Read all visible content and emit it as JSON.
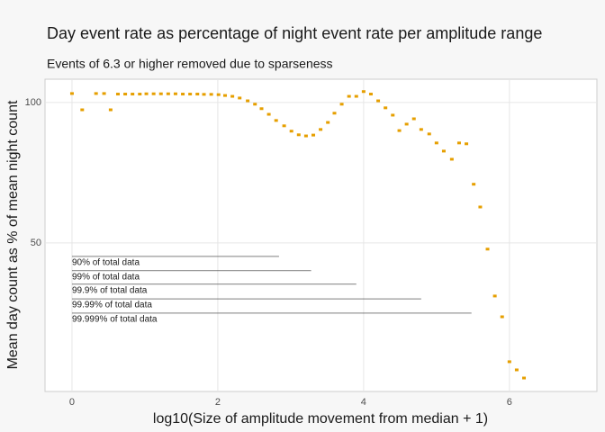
{
  "chart_data": {
    "type": "scatter",
    "title": "Day event rate as percentage of night event rate per amplitude range",
    "subtitle": "Events of 6.3 or higher removed due to sparseness",
    "x_label": "log10(Size of amplitude movement from median + 1)",
    "y_label": "Mean day count as % of mean night count",
    "color": "#e69f00",
    "grid": true,
    "xlim": [
      -0.37,
      7.2
    ],
    "ylim": [
      -2.9,
      108.3
    ],
    "xticks": [
      0,
      2,
      4,
      6
    ],
    "yticks": [
      50,
      100
    ],
    "x": [
      0.0,
      0.14,
      0.33,
      0.44,
      0.53,
      0.63,
      0.73,
      0.83,
      0.93,
      1.02,
      1.12,
      1.22,
      1.32,
      1.42,
      1.52,
      1.62,
      1.72,
      1.81,
      1.91,
      2.01,
      2.1,
      2.2,
      2.3,
      2.41,
      2.51,
      2.6,
      2.7,
      2.8,
      2.91,
      3.01,
      3.11,
      3.21,
      3.31,
      3.41,
      3.51,
      3.6,
      3.7,
      3.8,
      3.9,
      4.0,
      4.1,
      4.2,
      4.3,
      4.4,
      4.49,
      4.59,
      4.69,
      4.79,
      4.9,
      5.0,
      5.1,
      5.21,
      5.31,
      5.41,
      5.51,
      5.6,
      5.7,
      5.8,
      5.9,
      6.0,
      6.1,
      6.2
    ],
    "values": [
      103.2,
      97.4,
      103.2,
      103.2,
      97.4,
      103,
      103,
      103,
      103,
      103.1,
      103.1,
      103.1,
      103.1,
      103.1,
      103,
      103,
      103,
      102.9,
      102.9,
      102.8,
      102.5,
      102.2,
      101.6,
      100.6,
      99.4,
      97.8,
      95.8,
      93.6,
      91.7,
      89.8,
      88.5,
      88.1,
      88.4,
      90.4,
      92.9,
      96.2,
      99.4,
      102.2,
      102.2,
      103.9,
      103.0,
      100.6,
      98.1,
      95.5,
      90.0,
      92.3,
      94.2,
      90.4,
      88.8,
      85.6,
      82.7,
      79.8,
      85.6,
      85.3,
      70.9,
      62.8,
      47.8,
      31.1,
      23.7,
      7.7,
      4.8,
      1.9
    ],
    "annotations": [
      {
        "label": "90% of total data",
        "x": 2.84,
        "y": 45.2
      },
      {
        "label": "99% of total data",
        "x": 3.28,
        "y": 40.1
      },
      {
        "label": "99.9% of total data",
        "x": 3.9,
        "y": 35.3
      },
      {
        "label": "99.99% of total data",
        "x": 4.79,
        "y": 30.1
      },
      {
        "label": "99.999% of total data",
        "x": 5.48,
        "y": 25.0
      }
    ]
  }
}
